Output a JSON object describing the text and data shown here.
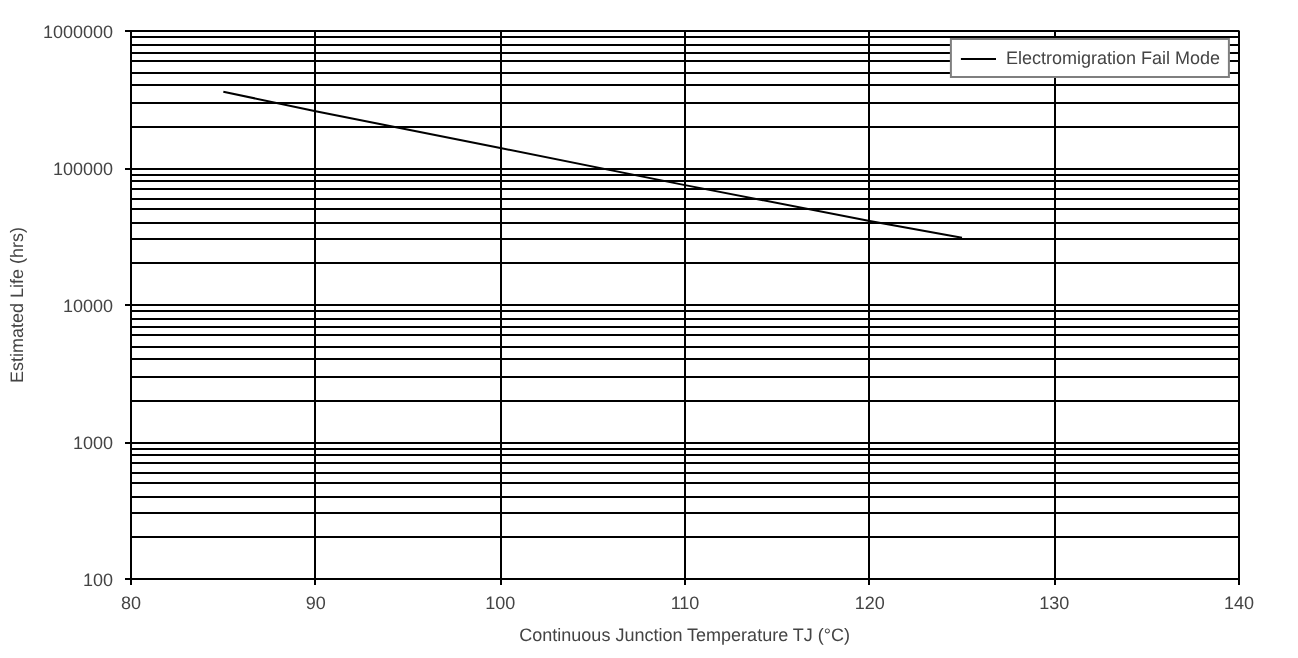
{
  "chart_data": {
    "type": "line",
    "xlabel": "Continuous Junction Temperature TJ (°C)",
    "ylabel": "Estimated Life (hrs)",
    "x": [
      85,
      90,
      100,
      110,
      120,
      125
    ],
    "series": [
      {
        "name": "Electromigration Fail Mode",
        "color": "#000000",
        "values": [
          360000,
          260000,
          140000,
          75000,
          41000,
          31000
        ]
      }
    ],
    "xlim": [
      80,
      140
    ],
    "xticks": [
      80,
      90,
      100,
      110,
      120,
      130,
      140
    ],
    "ylim": [
      100,
      1000000
    ],
    "yticks": [
      100,
      1000,
      10000,
      100000,
      1000000
    ],
    "log": "y",
    "grid": true,
    "legend": "top right",
    "marker": "none",
    "line_style": "solid"
  }
}
